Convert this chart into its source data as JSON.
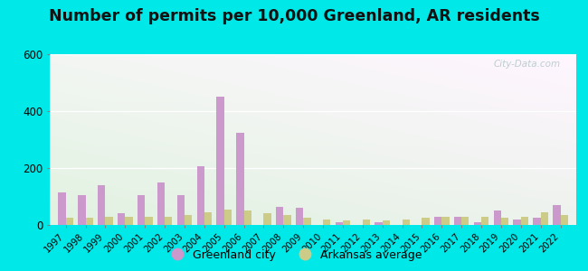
{
  "title": "Number of permits per 10,000 Greenland, AR residents",
  "years": [
    1997,
    1998,
    1999,
    2000,
    2001,
    2002,
    2003,
    2004,
    2005,
    2006,
    2007,
    2008,
    2009,
    2010,
    2011,
    2012,
    2013,
    2014,
    2015,
    2016,
    2017,
    2018,
    2019,
    2020,
    2021,
    2022
  ],
  "city_values": [
    115,
    105,
    140,
    40,
    105,
    150,
    105,
    205,
    450,
    325,
    0,
    65,
    60,
    0,
    10,
    0,
    10,
    0,
    0,
    30,
    30,
    10,
    50,
    20,
    25,
    70
  ],
  "avg_values": [
    25,
    25,
    30,
    30,
    30,
    30,
    35,
    45,
    55,
    50,
    40,
    35,
    25,
    20,
    15,
    20,
    15,
    20,
    25,
    30,
    30,
    30,
    25,
    30,
    45,
    35
  ],
  "city_color": "#cc99cc",
  "avg_color": "#cccc88",
  "outer_background": "#00e8e8",
  "ylim": [
    0,
    600
  ],
  "yticks": [
    0,
    200,
    400,
    600
  ],
  "legend_city": "Greenland city",
  "legend_avg": "Arkansas average",
  "bar_width": 0.38,
  "title_fontsize": 12.5
}
